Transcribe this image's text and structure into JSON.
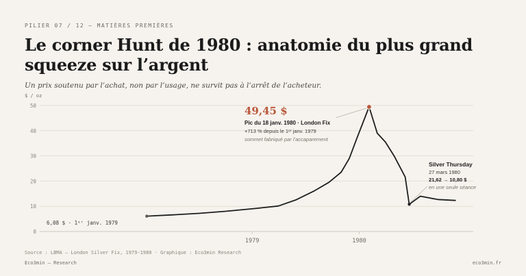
{
  "header": {
    "kicker": "PILIER 07 / 12 — MATIÈRES PREMIÈRES",
    "title": "Le corner Hunt de 1980 : anatomie du plus grand squeeze sur l’argent",
    "subtitle": "Un prix soutenu par l’achat, non par l’usage, ne survit pas à l’arrêt de l’acheteur."
  },
  "chart_data": {
    "type": "line",
    "ylabel": "$ / oz",
    "ylim": [
      0,
      50
    ],
    "yticks": [
      0,
      10,
      20,
      30,
      40,
      50
    ],
    "xticks": [
      {
        "label": "1979",
        "date": "1979-07-01"
      },
      {
        "label": "1980",
        "date": "1980-01-01"
      }
    ],
    "xrange": [
      "1978-07-01",
      "1980-07-15"
    ],
    "grid": true,
    "line_color": "#1e1e1e",
    "accent_color": "#b9583a",
    "series": [
      {
        "points": [
          {
            "date": "1979-01-01",
            "value": 6.08
          },
          {
            "date": "1979-02-15",
            "value": 6.6
          },
          {
            "date": "1979-04-01",
            "value": 7.2
          },
          {
            "date": "1979-05-15",
            "value": 8.0
          },
          {
            "date": "1979-07-01",
            "value": 9.0
          },
          {
            "date": "1979-08-15",
            "value": 10.1
          },
          {
            "date": "1979-09-15",
            "value": 12.6
          },
          {
            "date": "1979-10-15",
            "value": 16.0
          },
          {
            "date": "1979-11-10",
            "value": 19.5
          },
          {
            "date": "1979-12-01",
            "value": 23.5
          },
          {
            "date": "1979-12-15",
            "value": 29.0
          },
          {
            "date": "1979-12-28",
            "value": 37.0
          },
          {
            "date": "1980-01-18",
            "value": 49.45
          },
          {
            "date": "1980-02-01",
            "value": 39.0
          },
          {
            "date": "1980-02-15",
            "value": 35.5
          },
          {
            "date": "1980-03-01",
            "value": 30.0
          },
          {
            "date": "1980-03-20",
            "value": 21.62
          },
          {
            "date": "1980-03-27",
            "value": 10.8
          },
          {
            "date": "1980-04-15",
            "value": 14.0
          },
          {
            "date": "1980-05-15",
            "value": 12.7
          },
          {
            "date": "1980-06-15",
            "value": 12.3
          }
        ]
      }
    ],
    "annotations": {
      "start": {
        "date": "1979-01-01",
        "value": 6.08,
        "text": "6,08 $ · 1ᵉʳ janv. 1979"
      },
      "peak": {
        "date": "1980-01-18",
        "value": 49.45,
        "value_text": "49,45 $",
        "line1": "Pic du 18 janv. 1980 · London Fix",
        "line2": "+713 % depuis le 1ᵉʳ janv. 1979",
        "line3": "sommet fabriqué par l’accaparement"
      },
      "silver_thursday": {
        "date": "1980-03-27",
        "value": 10.8,
        "line1": "Silver Thursday",
        "line2": "27 mars 1980",
        "line3": "21,62 → 10,80 $",
        "line4": "en une seule séance"
      }
    }
  },
  "footer": {
    "source": "Source : LBMA — London Silver Fix, 1979-1980 · Graphique : Eco3min Research",
    "brand": "Eco3min — Research",
    "site": "eco3min.fr"
  }
}
